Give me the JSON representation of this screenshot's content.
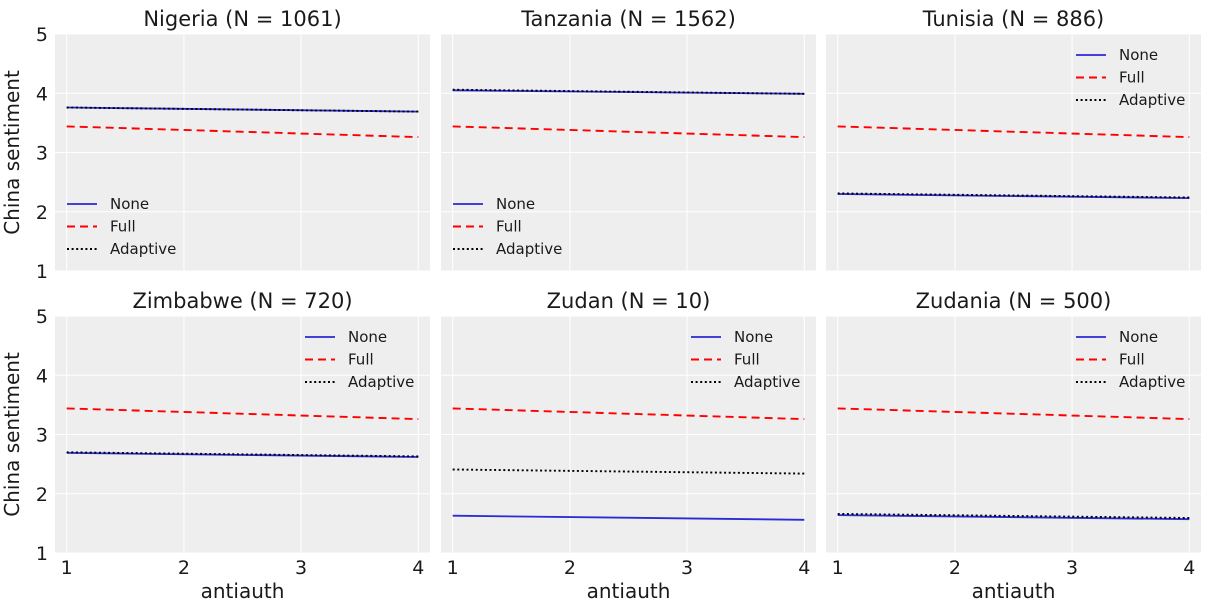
{
  "colors": {
    "panel_bg": "#eeeeee",
    "grid": "#ffffff",
    "none": "#2a2ad6",
    "full": "#ff0000",
    "adaptive": "#000000",
    "text": "#1a1a1a"
  },
  "chart_data": [
    {
      "type": "line",
      "title": "Nigeria (N = 1061)",
      "xlabel": "",
      "ylabel": "China sentiment",
      "xlim": [
        0.9,
        4.1
      ],
      "ylim": [
        1,
        5
      ],
      "xticks": [
        1,
        2,
        3,
        4
      ],
      "yticks": [
        1,
        2,
        3,
        4,
        5
      ],
      "legend": "lower-left",
      "grid": true,
      "series": [
        {
          "name": "None",
          "style": "solid",
          "x": [
            1,
            4
          ],
          "y": [
            3.76,
            3.69
          ]
        },
        {
          "name": "Full",
          "style": "dashed",
          "x": [
            1,
            4
          ],
          "y": [
            3.44,
            3.26
          ]
        },
        {
          "name": "Adaptive",
          "style": "dotted",
          "x": [
            1,
            4
          ],
          "y": [
            3.76,
            3.69
          ]
        }
      ]
    },
    {
      "type": "line",
      "title": "Tanzania (N = 1562)",
      "xlabel": "",
      "ylabel": "",
      "xlim": [
        0.9,
        4.1
      ],
      "ylim": [
        1,
        5
      ],
      "xticks": [
        1,
        2,
        3,
        4
      ],
      "yticks": [
        1,
        2,
        3,
        4,
        5
      ],
      "legend": "lower-left",
      "grid": true,
      "series": [
        {
          "name": "None",
          "style": "solid",
          "x": [
            1,
            4
          ],
          "y": [
            4.05,
            3.99
          ]
        },
        {
          "name": "Full",
          "style": "dashed",
          "x": [
            1,
            4
          ],
          "y": [
            3.44,
            3.26
          ]
        },
        {
          "name": "Adaptive",
          "style": "dotted",
          "x": [
            1,
            4
          ],
          "y": [
            4.06,
            3.99
          ]
        }
      ]
    },
    {
      "type": "line",
      "title": "Tunisia (N = 886)",
      "xlabel": "",
      "ylabel": "",
      "xlim": [
        0.9,
        4.1
      ],
      "ylim": [
        1,
        5
      ],
      "xticks": [
        1,
        2,
        3,
        4
      ],
      "yticks": [
        1,
        2,
        3,
        4,
        5
      ],
      "legend": "upper-right",
      "grid": true,
      "series": [
        {
          "name": "None",
          "style": "solid",
          "x": [
            1,
            4
          ],
          "y": [
            2.3,
            2.23
          ]
        },
        {
          "name": "Full",
          "style": "dashed",
          "x": [
            1,
            4
          ],
          "y": [
            3.44,
            3.26
          ]
        },
        {
          "name": "Adaptive",
          "style": "dotted",
          "x": [
            1,
            4
          ],
          "y": [
            2.31,
            2.24
          ]
        }
      ]
    },
    {
      "type": "line",
      "title": "Zimbabwe (N = 720)",
      "xlabel": "antiauth",
      "ylabel": "China sentiment",
      "xlim": [
        0.9,
        4.1
      ],
      "ylim": [
        1,
        5
      ],
      "xticks": [
        1,
        2,
        3,
        4
      ],
      "yticks": [
        1,
        2,
        3,
        4,
        5
      ],
      "legend": "upper-right",
      "grid": true,
      "series": [
        {
          "name": "None",
          "style": "solid",
          "x": [
            1,
            4
          ],
          "y": [
            2.69,
            2.62
          ]
        },
        {
          "name": "Full",
          "style": "dashed",
          "x": [
            1,
            4
          ],
          "y": [
            3.44,
            3.26
          ]
        },
        {
          "name": "Adaptive",
          "style": "dotted",
          "x": [
            1,
            4
          ],
          "y": [
            2.7,
            2.63
          ]
        }
      ]
    },
    {
      "type": "line",
      "title": "Zudan (N = 10)",
      "xlabel": "antiauth",
      "ylabel": "",
      "xlim": [
        0.9,
        4.1
      ],
      "ylim": [
        1,
        5
      ],
      "xticks": [
        1,
        2,
        3,
        4
      ],
      "yticks": [
        1,
        2,
        3,
        4,
        5
      ],
      "legend": "upper-right",
      "grid": true,
      "series": [
        {
          "name": "None",
          "style": "solid",
          "x": [
            1,
            4
          ],
          "y": [
            1.63,
            1.56
          ]
        },
        {
          "name": "Full",
          "style": "dashed",
          "x": [
            1,
            4
          ],
          "y": [
            3.44,
            3.26
          ]
        },
        {
          "name": "Adaptive",
          "style": "dotted",
          "x": [
            1,
            4
          ],
          "y": [
            2.41,
            2.34
          ]
        }
      ]
    },
    {
      "type": "line",
      "title": "Zudania (N = 500)",
      "xlabel": "antiauth",
      "ylabel": "",
      "xlim": [
        0.9,
        4.1
      ],
      "ylim": [
        1,
        5
      ],
      "xticks": [
        1,
        2,
        3,
        4
      ],
      "yticks": [
        1,
        2,
        3,
        4,
        5
      ],
      "legend": "upper-right",
      "grid": true,
      "series": [
        {
          "name": "None",
          "style": "solid",
          "x": [
            1,
            4
          ],
          "y": [
            1.64,
            1.57
          ]
        },
        {
          "name": "Full",
          "style": "dashed",
          "x": [
            1,
            4
          ],
          "y": [
            3.44,
            3.26
          ]
        },
        {
          "name": "Adaptive",
          "style": "dotted",
          "x": [
            1,
            4
          ],
          "y": [
            1.66,
            1.59
          ]
        }
      ]
    }
  ]
}
